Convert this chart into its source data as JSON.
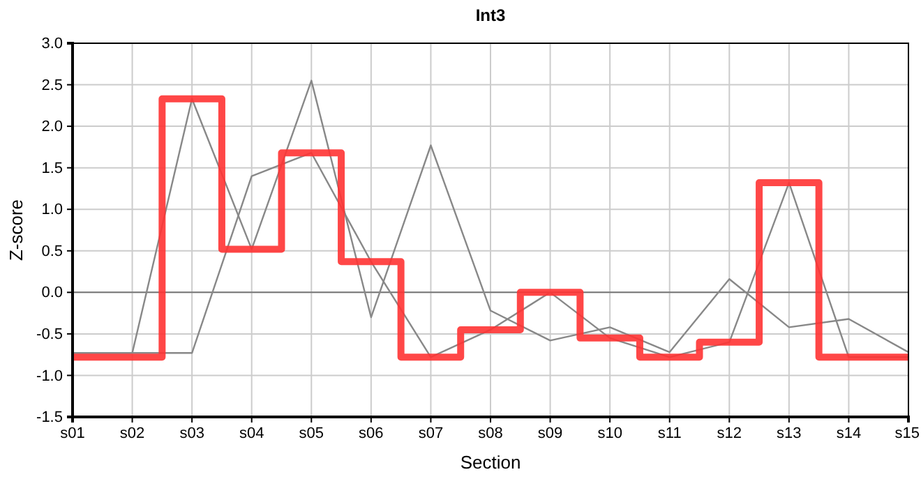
{
  "chart_data": {
    "type": "line",
    "title": "Int3",
    "xlabel": "Section",
    "ylabel": "Z-score",
    "categories": [
      "s01",
      "s02",
      "s03",
      "s04",
      "s05",
      "s06",
      "s07",
      "s08",
      "s09",
      "s10",
      "s11",
      "s12",
      "s13",
      "s14",
      "s15"
    ],
    "series": [
      {
        "color": "#888888",
        "values": [
          -0.73,
          -0.73,
          2.33,
          0.52,
          2.55,
          -0.3,
          1.77,
          -0.22,
          -0.58,
          -0.42,
          -0.72,
          0.16,
          -0.42,
          -0.32,
          -0.72
        ]
      },
      {
        "color": "#888888",
        "values": [
          -0.73,
          -0.73,
          -0.73,
          1.4,
          1.68,
          0.37,
          -0.78,
          -0.45,
          0.0,
          -0.55,
          -0.78,
          -0.6,
          1.32,
          -0.78,
          -0.78
        ]
      },
      {
        "type": "step",
        "color": "#ff3333",
        "values": [
          -0.78,
          -0.78,
          2.33,
          0.52,
          1.68,
          0.37,
          -0.78,
          -0.45,
          0.0,
          -0.55,
          -0.78,
          -0.6,
          1.32,
          -0.78,
          -0.78
        ]
      }
    ],
    "ylim": [
      -1.5,
      3.0
    ],
    "yticks": [
      {
        "value": -1.5,
        "label": "-1.5"
      },
      {
        "value": -1,
        "label": "-1.0"
      },
      {
        "value": -0.5,
        "label": "-0.5"
      },
      {
        "value": 0,
        "label": "0.0"
      },
      {
        "value": 0.5,
        "label": "0.5"
      },
      {
        "value": 1,
        "label": "1.0"
      },
      {
        "value": 1.5,
        "label": "1.5"
      },
      {
        "value": 2,
        "label": "2.0"
      },
      {
        "value": 2.5,
        "label": "2.5"
      },
      {
        "value": 3,
        "label": "3.0"
      }
    ],
    "ref_lines": [
      {
        "axis": "y",
        "value": 0,
        "color": "#777777"
      }
    ],
    "grid": true,
    "marker": "none",
    "line_style": "solid"
  }
}
